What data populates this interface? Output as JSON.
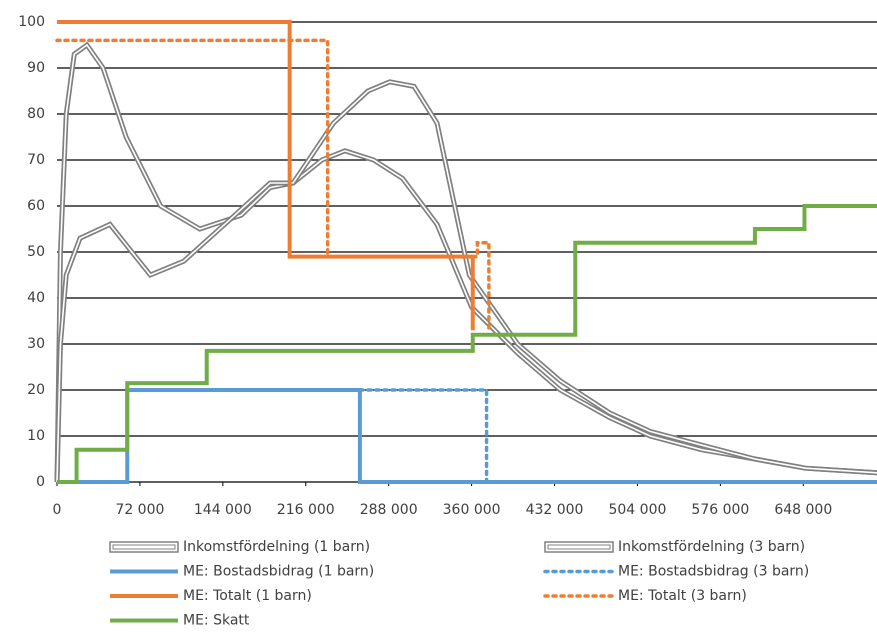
{
  "chart_data": {
    "type": "line",
    "xlim": [
      0,
      712000
    ],
    "ylim": [
      0,
      100
    ],
    "xticks": [
      0,
      {
        "value": 72000,
        "label": "72 000"
      },
      {
        "value": 144000,
        "label": "144 000"
      },
      {
        "value": 216000,
        "label": "216 000"
      },
      {
        "value": 288000,
        "label": "288 000"
      },
      {
        "value": 360000,
        "label": "360 000"
      },
      {
        "value": 432000,
        "label": "432 000"
      },
      {
        "value": 504000,
        "label": "504 000"
      },
      {
        "value": 576000,
        "label": "576 000"
      },
      {
        "value": 648000,
        "label": "648 000"
      }
    ],
    "yticks": [
      0,
      10,
      20,
      30,
      40,
      50,
      60,
      70,
      80,
      90,
      100
    ],
    "grid": true,
    "legend": "bottom",
    "series": [
      {
        "name": "Inkomstfördelning (1 barn)",
        "color": "#808080",
        "style": "double",
        "x": [
          0,
          3000,
          8000,
          15000,
          26000,
          40000,
          60000,
          90000,
          124000,
          160000,
          185000,
          205000,
          230000,
          250000,
          275000,
          300000,
          330000,
          360000,
          400000,
          437000,
          480000,
          515000,
          560000,
          606000,
          650000,
          712000
        ],
        "values": [
          0,
          50,
          80,
          93,
          95,
          90,
          75,
          60,
          55,
          58,
          64,
          65,
          70,
          72,
          70,
          66,
          56,
          38,
          28,
          20,
          14,
          10,
          7,
          5,
          3,
          2
        ]
      },
      {
        "name": "Inkomstfördelning (3 barn)",
        "color": "#808080",
        "style": "double",
        "x": [
          0,
          3000,
          8000,
          20000,
          46000,
          65000,
          81000,
          110000,
          150000,
          185000,
          205000,
          240000,
          270000,
          289000,
          310000,
          330000,
          358000,
          400000,
          437000,
          480000,
          515000,
          560000,
          606000,
          650000,
          712000
        ],
        "values": [
          0,
          30,
          45,
          53,
          56,
          50,
          45,
          48,
          57,
          65,
          65,
          78,
          85,
          87,
          86,
          78,
          45,
          30,
          22,
          15,
          11,
          8,
          5,
          3,
          2
        ]
      },
      {
        "name": "ME: Bostadsbidrag (1 barn)",
        "color": "#5b9bd5",
        "style": "solid",
        "x": [
          0,
          61000,
          61000,
          263000,
          263000,
          712000
        ],
        "values": [
          0,
          0,
          20,
          20,
          0,
          0
        ]
      },
      {
        "name": "ME: Bostadsbidrag (3 barn)",
        "color": "#5b9bd5",
        "style": "dotted",
        "x": [
          263000,
          373000,
          373000
        ],
        "values": [
          20,
          20,
          0
        ]
      },
      {
        "name": "ME: Totalt (1 barn)",
        "color": "#ed7d31",
        "style": "solid",
        "x": [
          0,
          202000,
          202000,
          361000,
          361000
        ],
        "values": [
          100,
          100,
          49,
          49,
          33
        ]
      },
      {
        "name": "ME: Totalt (3 barn)",
        "color": "#ed7d31",
        "style": "dotted",
        "x": [
          0,
          235000,
          235000,
          365000,
          365000,
          375000,
          375000
        ],
        "values": [
          96,
          96,
          49,
          49,
          52,
          52,
          33
        ]
      },
      {
        "name": "ME: Skatt",
        "color": "#70ad47",
        "style": "solid",
        "x": [
          0,
          17000,
          17000,
          61000,
          61000,
          130000,
          130000,
          361000,
          361000,
          450000,
          450000,
          606000,
          606000,
          649000,
          649000,
          712000
        ],
        "values": [
          0,
          0,
          7,
          7,
          21.5,
          21.5,
          28.5,
          28.5,
          32,
          32,
          52,
          52,
          55,
          55,
          60,
          60
        ]
      }
    ]
  }
}
